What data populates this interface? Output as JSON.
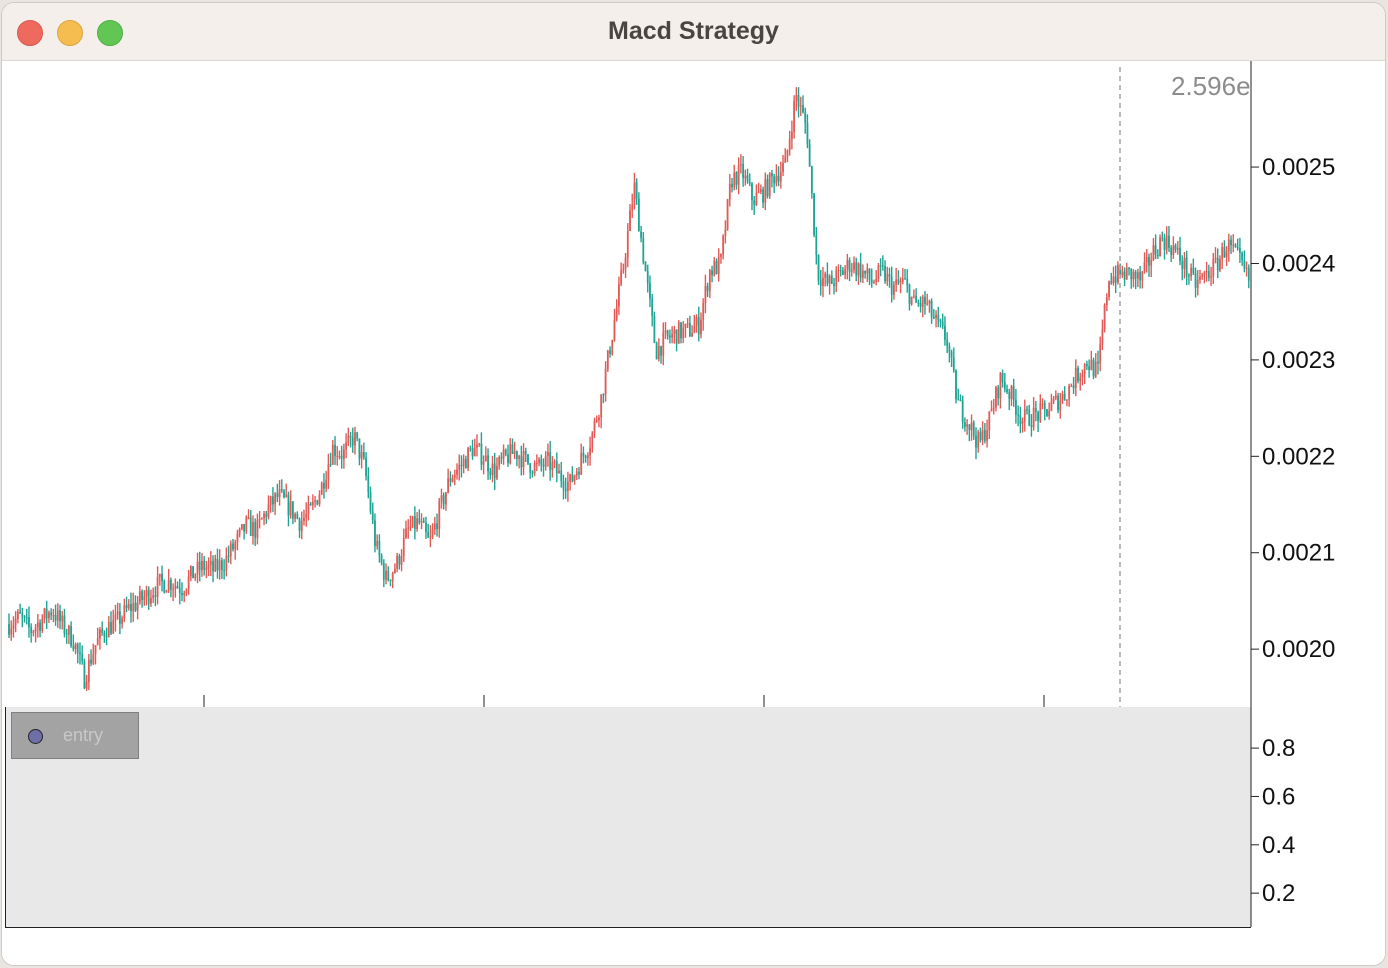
{
  "window": {
    "title": "Macd Strategy"
  },
  "colors": {
    "up": "#e05a56",
    "down": "#1fa393",
    "panel_bg": "#e8e8e8",
    "cursor_line": "#a6a6a6"
  },
  "cursor": {
    "readout": "2.596e"
  },
  "legend": {
    "label": "entry",
    "marker_color": "#6d6fa6"
  },
  "chart_data": [
    {
      "type": "candlestick",
      "title": "",
      "ylim": [
        0.00194,
        0.00261
      ],
      "yticks": [
        "0.0020",
        "0.0021",
        "0.0022",
        "0.0023",
        "0.0024",
        "0.0025"
      ],
      "x_ticks_shown": 4,
      "series": [
        {
          "values": [
            0.002026,
            0.002033,
            0.002019,
            0.00203,
            0.002041,
            0.002024,
            0.002009,
            0.00197,
            0.002004,
            0.002022,
            0.002028,
            0.002041,
            0.002049,
            0.002058,
            0.002068,
            0.00207,
            0.002063,
            0.002077,
            0.002086,
            0.002082,
            0.002091,
            0.002109,
            0.002128,
            0.002123,
            0.002146,
            0.002159,
            0.002147,
            0.002132,
            0.002143,
            0.002169,
            0.002209,
            0.002202,
            0.002221,
            0.002188,
            0.002108,
            0.002072,
            0.002089,
            0.002123,
            0.002132,
            0.002109,
            0.002146,
            0.00218,
            0.002191,
            0.002208,
            0.0022,
            0.002184,
            0.002198,
            0.002205,
            0.002194,
            0.002188,
            0.002194,
            0.002181,
            0.002171,
            0.002195,
            0.002218,
            0.002264,
            0.00233,
            0.002398,
            0.00248,
            0.002395,
            0.002309,
            0.002322,
            0.002328,
            0.00233,
            0.002337,
            0.002392,
            0.002399,
            0.002487,
            0.002495,
            0.002466,
            0.002474,
            0.002491,
            0.002502,
            0.002575,
            0.00254,
            0.00239,
            0.002378,
            0.002387,
            0.0024,
            0.002393,
            0.002381,
            0.002391,
            0.002375,
            0.002381,
            0.002357,
            0.002359,
            0.002338,
            0.002321,
            0.002255,
            0.002235,
            0.002212,
            0.00224,
            0.002281,
            0.002262,
            0.002238,
            0.002242,
            0.002245,
            0.002255,
            0.002265,
            0.002283,
            0.002298,
            0.002287,
            0.002386,
            0.002388,
            0.002389,
            0.002382,
            0.002409,
            0.002426,
            0.002416,
            0.002398,
            0.002378,
            0.002388,
            0.002399,
            0.00242,
            0.002405,
            0.002382
          ]
        }
      ]
    },
    {
      "type": "scatter",
      "title": "",
      "ylim": [
        0.06,
        0.97
      ],
      "yticks": [
        "0.2",
        "0.4",
        "0.6",
        "0.8"
      ],
      "series": [
        {
          "name": "entry",
          "values": []
        }
      ]
    }
  ]
}
